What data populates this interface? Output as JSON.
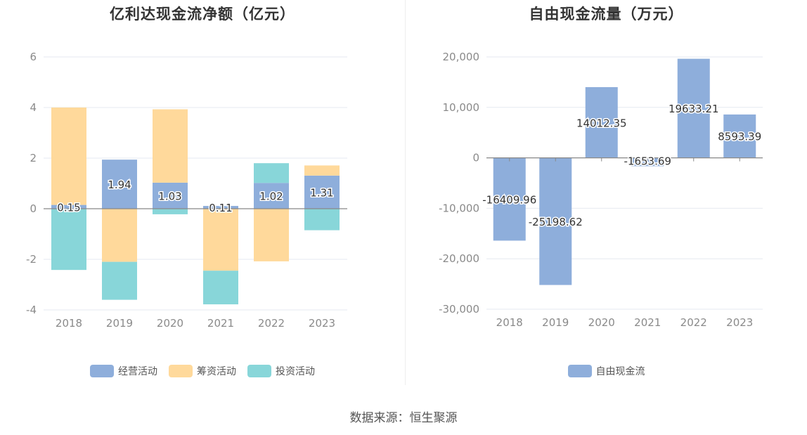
{
  "chart_data": [
    {
      "type": "bar",
      "stacked": true,
      "title": "亿利达现金流净额（亿元）",
      "categories": [
        "2018",
        "2019",
        "2020",
        "2021",
        "2022",
        "2023"
      ],
      "ylim": [
        -4,
        6
      ],
      "yticks": [
        -4,
        -2,
        0,
        2,
        4,
        6
      ],
      "grid": true,
      "legend_position": "bottom",
      "series": [
        {
          "name": "经营活动",
          "color": "#8eaedb",
          "values": [
            0.15,
            1.94,
            1.03,
            0.11,
            1.02,
            1.31
          ]
        },
        {
          "name": "筹资活动",
          "color": "#ffd99b",
          "values": [
            3.85,
            -2.1,
            2.9,
            -2.45,
            -2.08,
            0.4
          ]
        },
        {
          "name": "投资活动",
          "color": "#88d6d9",
          "values": [
            -2.42,
            -1.5,
            -0.22,
            -1.33,
            0.78,
            -0.85
          ]
        }
      ],
      "data_labels": [
        "0.15",
        "1.94",
        "1.03",
        "0.11",
        "1.02",
        "1.31"
      ]
    },
    {
      "type": "bar",
      "title": "自由现金流量（万元）",
      "categories": [
        "2018",
        "2019",
        "2020",
        "2021",
        "2022",
        "2023"
      ],
      "ylim": [
        -30000,
        20000
      ],
      "yticks": [
        -30000,
        -20000,
        -10000,
        0,
        10000,
        20000
      ],
      "ytick_labels": [
        "-30,000",
        "-20,000",
        "-10,000",
        "0",
        "10,000",
        "20,000"
      ],
      "grid": true,
      "legend_position": "bottom",
      "series": [
        {
          "name": "自由现金流",
          "color": "#8eaedb",
          "values": [
            -16409.96,
            -25198.62,
            14012.35,
            -1653.69,
            19633.21,
            8593.39
          ]
        }
      ],
      "data_labels": [
        "-16409.96",
        "-25198.62",
        "14012.35",
        "-1653.69",
        "19633.21",
        "8593.39"
      ]
    }
  ],
  "footer": {
    "source": "数据来源：恒生聚源"
  }
}
